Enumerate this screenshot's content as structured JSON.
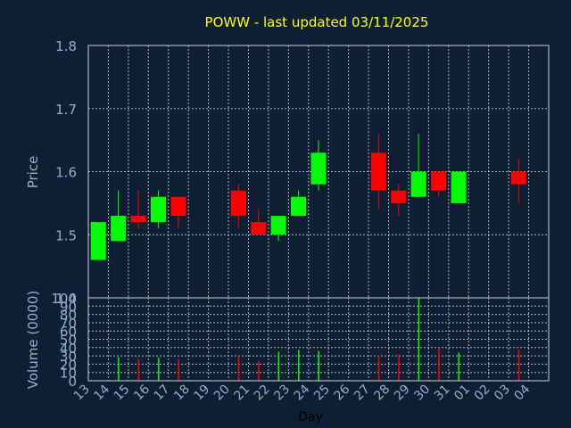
{
  "chart_data": [
    {
      "type": "candlestick",
      "title": "POWW - last updated 03/11/2025",
      "ylabel": "Price",
      "ylim": [
        1.4,
        1.8
      ],
      "yticks": [
        "1.4",
        "1.5",
        "1.6",
        "1.7",
        "1.8"
      ],
      "up_color": "#00ff00",
      "down_color": "#ff0000",
      "grid": true,
      "candles": [
        {
          "day": "13",
          "open": 1.46,
          "high": 1.52,
          "low": 1.46,
          "close": 1.52
        },
        {
          "day": "14",
          "open": 1.49,
          "high": 1.57,
          "low": 1.49,
          "close": 1.53
        },
        {
          "day": "15",
          "open": 1.53,
          "high": 1.57,
          "low": 1.51,
          "close": 1.52
        },
        {
          "day": "16",
          "open": 1.52,
          "high": 1.57,
          "low": 1.51,
          "close": 1.56
        },
        {
          "day": "17",
          "open": 1.56,
          "high": 1.56,
          "low": 1.51,
          "close": 1.53
        },
        {
          "day": "20",
          "open": 1.57,
          "high": 1.58,
          "low": 1.51,
          "close": 1.53
        },
        {
          "day": "21",
          "open": 1.52,
          "high": 1.54,
          "low": 1.5,
          "close": 1.5
        },
        {
          "day": "22",
          "open": 1.5,
          "high": 1.53,
          "low": 1.49,
          "close": 1.53
        },
        {
          "day": "23",
          "open": 1.53,
          "high": 1.57,
          "low": 1.53,
          "close": 1.56
        },
        {
          "day": "24",
          "open": 1.58,
          "high": 1.65,
          "low": 1.57,
          "close": 1.63
        },
        {
          "day": "27",
          "open": 1.63,
          "high": 1.66,
          "low": 1.54,
          "close": 1.57
        },
        {
          "day": "28",
          "open": 1.57,
          "high": 1.58,
          "low": 1.53,
          "close": 1.55
        },
        {
          "day": "29",
          "open": 1.56,
          "high": 1.66,
          "low": 1.56,
          "close": 1.6
        },
        {
          "day": "30",
          "open": 1.6,
          "high": 1.6,
          "low": 1.56,
          "close": 1.57
        },
        {
          "day": "31",
          "open": 1.55,
          "high": 1.6,
          "low": 1.55,
          "close": 1.6
        },
        {
          "day": "03",
          "open": 1.6,
          "high": 1.62,
          "low": 1.55,
          "close": 1.58
        }
      ]
    },
    {
      "type": "bar",
      "ylabel": "Volume (0000)",
      "xlabel": "Day",
      "ylim": [
        0,
        100
      ],
      "yticks": [
        "0",
        "10",
        "20",
        "30",
        "40",
        "50",
        "60",
        "70",
        "80",
        "90",
        "100"
      ],
      "categories": [
        "13",
        "14",
        "15",
        "16",
        "17",
        "18",
        "19",
        "20",
        "21",
        "22",
        "23",
        "24",
        "25",
        "26",
        "27",
        "28",
        "29",
        "30",
        "31",
        "01",
        "02",
        "03",
        "04"
      ],
      "bars": [
        {
          "day": "14",
          "value": 28,
          "color": "#00ff00"
        },
        {
          "day": "15",
          "value": 26,
          "color": "#ff0000"
        },
        {
          "day": "16",
          "value": 28,
          "color": "#00ff00"
        },
        {
          "day": "17",
          "value": 26,
          "color": "#ff0000"
        },
        {
          "day": "20",
          "value": 30,
          "color": "#ff0000"
        },
        {
          "day": "21",
          "value": 24,
          "color": "#ff0000"
        },
        {
          "day": "22",
          "value": 35,
          "color": "#00ff00"
        },
        {
          "day": "23",
          "value": 37,
          "color": "#00ff00"
        },
        {
          "day": "24",
          "value": 36,
          "color": "#00ff00"
        },
        {
          "day": "27",
          "value": 31,
          "color": "#ff0000"
        },
        {
          "day": "28",
          "value": 32,
          "color": "#ff0000"
        },
        {
          "day": "29",
          "value": 100,
          "color": "#00ff00"
        },
        {
          "day": "30",
          "value": 40,
          "color": "#ff0000"
        },
        {
          "day": "31",
          "value": 34,
          "color": "#00ff00"
        },
        {
          "day": "03",
          "value": 38,
          "color": "#ff0000"
        }
      ]
    }
  ]
}
